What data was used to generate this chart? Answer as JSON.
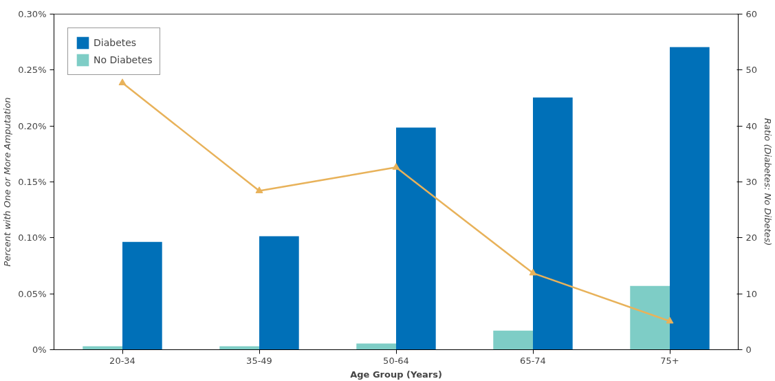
{
  "chart_data": {
    "type": "bar",
    "xlabel": "Age Group (Years)",
    "ylabel": "Percent with One or More Amputation",
    "y2label": "Ratio (Diabetes: No Dibetes)",
    "categories": [
      "20-34",
      "35-49",
      "50-64",
      "65-74",
      "75+"
    ],
    "series": [
      {
        "name": "No Diabetes",
        "color": "#7ecdc6",
        "values": [
          0.003,
          0.003,
          0.0056,
          0.017,
          0.057
        ]
      },
      {
        "name": "Diabetes",
        "color": "#0070b8",
        "values": [
          0.0964,
          0.1015,
          0.1985,
          0.2255,
          0.2705
        ]
      },
      {
        "type": "line",
        "axis": "y2",
        "color": "#e8b25a",
        "marker": "triangle",
        "values": [
          47.7,
          28.4,
          32.6,
          13.7,
          5.1
        ]
      }
    ],
    "ylim": [
      0,
      0.3
    ],
    "yticks": [
      {
        "value": 0,
        "label": "0%"
      },
      {
        "value": 0.05,
        "label": "0.05%"
      },
      {
        "value": 0.1,
        "label": "0.10%"
      },
      {
        "value": 0.15,
        "label": "0.15%"
      },
      {
        "value": 0.2,
        "label": "0.20%"
      },
      {
        "value": 0.25,
        "label": "0.25%"
      },
      {
        "value": 0.3,
        "label": "0.30%"
      }
    ],
    "y2lim": [
      0,
      60
    ],
    "y2ticks": [
      0,
      10,
      20,
      30,
      40,
      50,
      60
    ],
    "legend": "top left",
    "grid": false
  }
}
